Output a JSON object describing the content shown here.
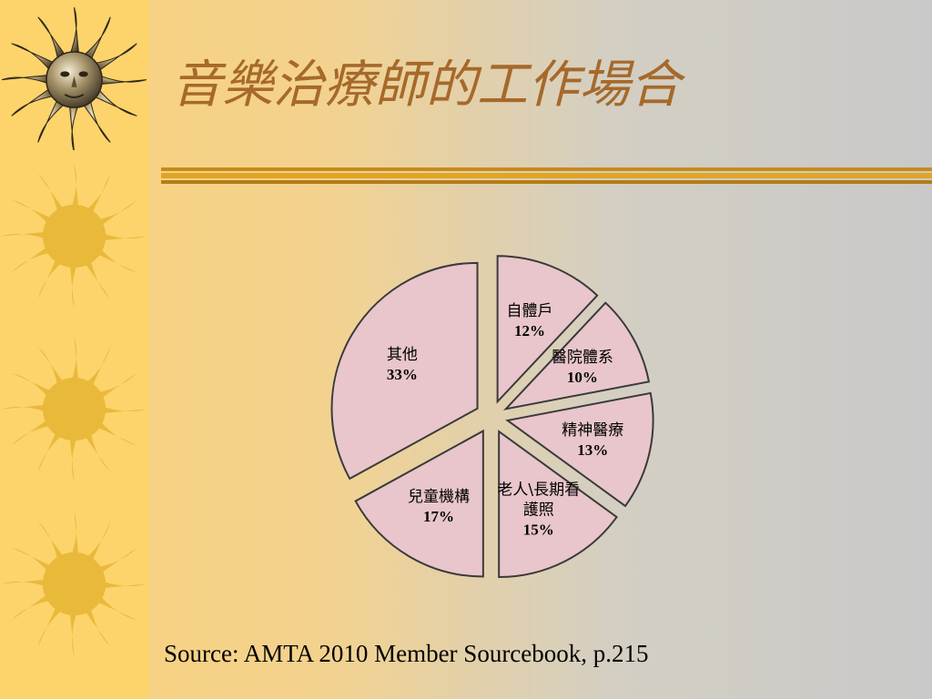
{
  "slide": {
    "title": "音樂治療師的工作場合",
    "source": "Source: AMTA 2010 Member Sourcebook, p.215",
    "colors": {
      "band": "#fdd36b",
      "title": "#a6692a",
      "rule": "#c88a1a",
      "slice_fill": "#e8c6cb",
      "slice_stroke": "#3a3a3a"
    },
    "icons": [
      "metallic-sun-icon",
      "sun-icon",
      "sun-icon",
      "sun-icon"
    ]
  },
  "chart_data": {
    "type": "pie",
    "title": "",
    "exploded": true,
    "slices": [
      {
        "label": "自體戶",
        "value": 12,
        "value_label": "12%"
      },
      {
        "label": "醫院體系",
        "value": 10,
        "value_label": "10%"
      },
      {
        "label": "精神醫療",
        "value": 13,
        "value_label": "13%"
      },
      {
        "label": "老人\\長期看護照",
        "label_lines": [
          "老人\\長期看",
          "護照"
        ],
        "value": 15,
        "value_label": "15%"
      },
      {
        "label": "兒童機構",
        "value": 17,
        "value_label": "17%"
      },
      {
        "label": "其他",
        "value": 33,
        "value_label": "33%"
      }
    ]
  }
}
